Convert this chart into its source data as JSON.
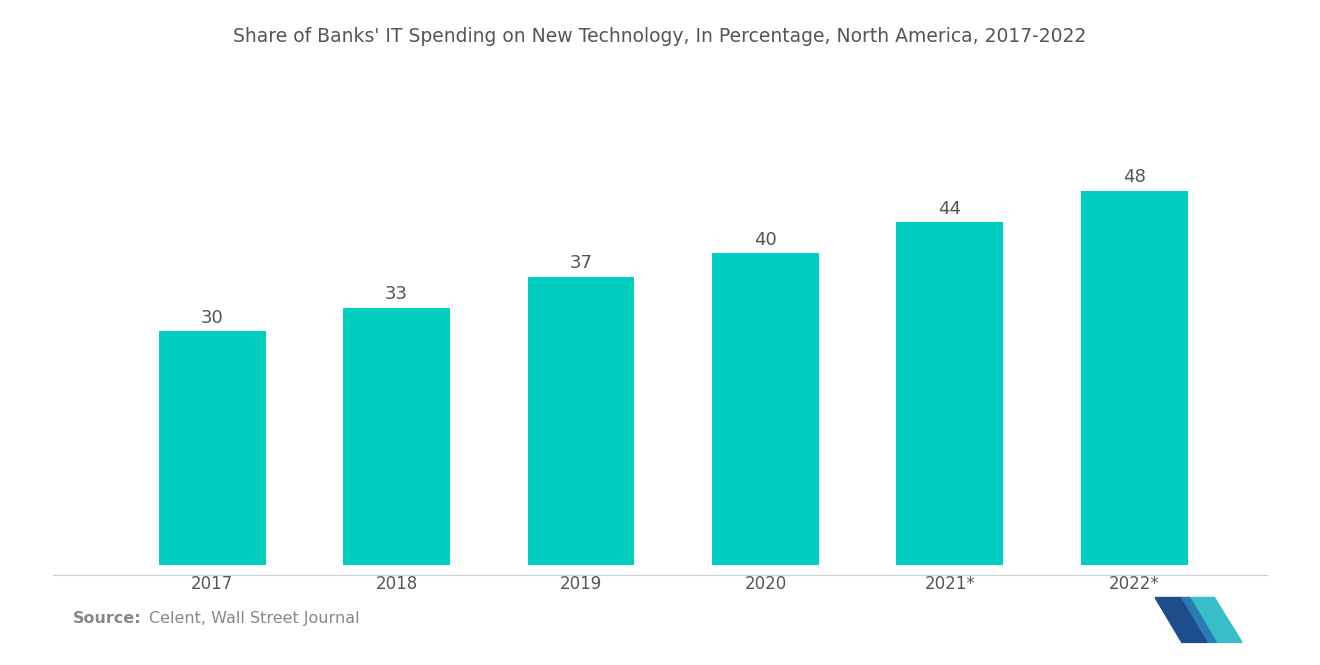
{
  "title": "Share of Banks' IT Spending on New Technology, In Percentage, North America, 2017-2022",
  "categories": [
    "2017",
    "2018",
    "2019",
    "2020",
    "2021*",
    "2022*"
  ],
  "values": [
    30,
    33,
    37,
    40,
    44,
    48
  ],
  "bar_color": "#00CEC0",
  "background_color": "#ffffff",
  "title_color": "#555555",
  "title_fontsize": 13.5,
  "label_fontsize": 12,
  "value_fontsize": 13,
  "source_bold": "Source:",
  "source_text": "Celent, Wall Street Journal",
  "source_fontsize": 11.5,
  "source_color": "#888888",
  "ylim": [
    0,
    58
  ],
  "bar_width": 0.58,
  "logo_left_color": "#1e5799",
  "logo_right_color": "#38b5c5",
  "logo_mid_color": "#2980b9"
}
